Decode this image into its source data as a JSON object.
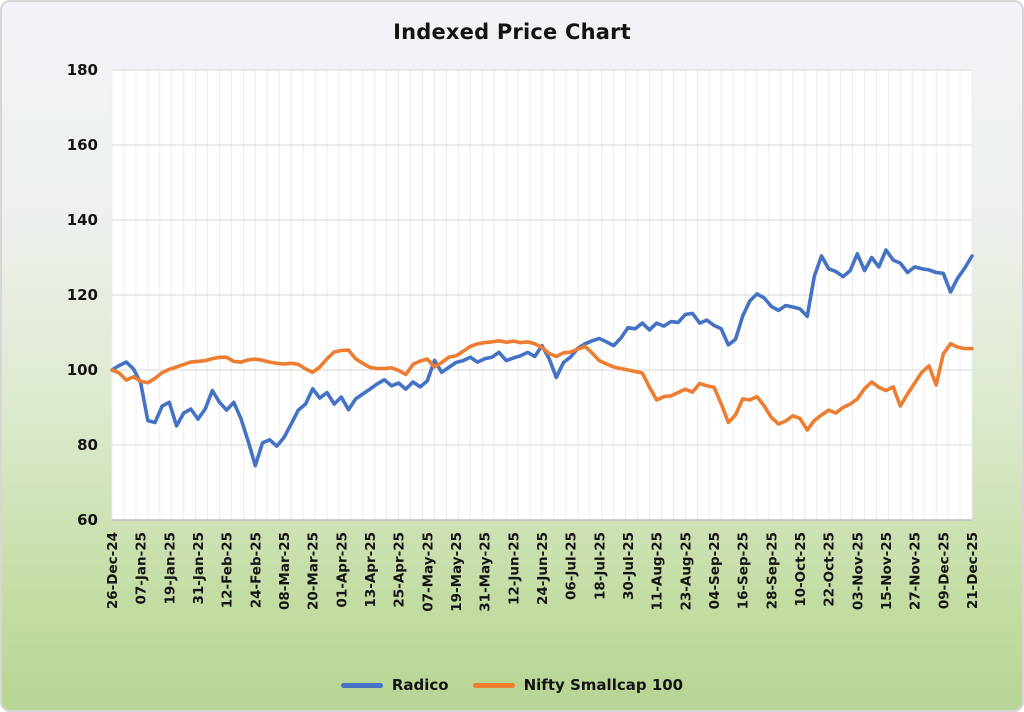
{
  "title": "Indexed Price Chart",
  "legend": [
    {
      "label": "Radico",
      "color": "#4472c4"
    },
    {
      "label": "Nifty Smallcap 100",
      "color": "#ed7d31"
    }
  ],
  "chart_data": {
    "type": "line",
    "title": "Indexed Price Chart",
    "xlabel": "",
    "ylabel": "",
    "grid": "on",
    "legend_position": "bottom",
    "ylim": [
      60,
      180
    ],
    "y_ticks": [
      60,
      80,
      100,
      120,
      140,
      160,
      180
    ],
    "x_tick_days": [
      0,
      12,
      24,
      36,
      48,
      60,
      72,
      84,
      96,
      108,
      120,
      132,
      144,
      156,
      168,
      180,
      192,
      204,
      216,
      228,
      240,
      252,
      264,
      276,
      288,
      300,
      312,
      324,
      336,
      348,
      360
    ],
    "x_tick_labels": [
      "26-Dec-24",
      "07-Jan-25",
      "19-Jan-25",
      "31-Jan-25",
      "12-Feb-25",
      "24-Feb-25",
      "08-Mar-25",
      "20-Mar-25",
      "01-Apr-25",
      "13-Apr-25",
      "25-Apr-25",
      "07-May-25",
      "19-May-25",
      "31-May-25",
      "12-Jun-25",
      "24-Jun-25",
      "06-Jul-25",
      "18-Jul-25",
      "30-Jul-25",
      "11-Aug-25",
      "23-Aug-25",
      "04-Sep-25",
      "16-Sep-25",
      "28-Sep-25",
      "10-Oct-25",
      "22-Oct-25",
      "03-Nov-25",
      "15-Nov-25",
      "27-Nov-25",
      "09-Dec-25",
      "21-Dec-25"
    ],
    "x_days": [
      0,
      3,
      6,
      9,
      12,
      15,
      18,
      21,
      24,
      27,
      30,
      33,
      36,
      39,
      42,
      45,
      48,
      51,
      54,
      57,
      60,
      63,
      66,
      69,
      72,
      75,
      78,
      81,
      84,
      87,
      90,
      93,
      96,
      99,
      102,
      105,
      108,
      111,
      114,
      117,
      120,
      123,
      126,
      129,
      132,
      135,
      138,
      141,
      144,
      147,
      150,
      153,
      156,
      159,
      162,
      165,
      168,
      171,
      174,
      177,
      180,
      183,
      186,
      189,
      192,
      195,
      198,
      201,
      204,
      207,
      210,
      213,
      216,
      219,
      222,
      225,
      228,
      231,
      234,
      237,
      240,
      243,
      246,
      249,
      252,
      255,
      258,
      261,
      264,
      267,
      270,
      273,
      276,
      279,
      282,
      285,
      288,
      291,
      294,
      297,
      300,
      303,
      306,
      309,
      312,
      315,
      318,
      321,
      324,
      327,
      330,
      333,
      336,
      339,
      342,
      345,
      348,
      351,
      354,
      357,
      360
    ],
    "series": [
      {
        "name": "Radico",
        "color": "#4472c4",
        "values": [
          100.0,
          101.2,
          102.1,
          100.3,
          96.5,
          86.5,
          86.0,
          90.4,
          91.4,
          85.1,
          88.5,
          89.6,
          86.9,
          89.6,
          94.5,
          91.4,
          89.3,
          91.4,
          87.0,
          81.0,
          74.5,
          80.6,
          81.4,
          79.7,
          82.0,
          85.6,
          89.3,
          90.9,
          95.0,
          92.5,
          94.0,
          90.9,
          92.8,
          89.4,
          92.3,
          93.6,
          94.9,
          96.3,
          97.4,
          95.8,
          96.5,
          94.9,
          96.8,
          95.5,
          97.1,
          102.6,
          99.4,
          100.7,
          102.0,
          102.5,
          103.4,
          102.1,
          103.0,
          103.4,
          104.7,
          102.5,
          103.2,
          103.8,
          104.7,
          103.6,
          106.5,
          103.0,
          98.0,
          102.0,
          103.5,
          105.8,
          107.0,
          107.8,
          108.4,
          107.5,
          106.5,
          108.5,
          111.3,
          111.0,
          112.5,
          110.7,
          112.5,
          111.7,
          112.9,
          112.7,
          114.8,
          115.1,
          112.5,
          113.3,
          111.9,
          111.0,
          106.7,
          108.2,
          114.4,
          118.4,
          120.3,
          119.2,
          117.0,
          115.9,
          117.2,
          116.8,
          116.3,
          114.3,
          125.0,
          130.4,
          127.0,
          126.3,
          124.9,
          126.5,
          131.0,
          126.5,
          130.0,
          127.5,
          132.0,
          129.3,
          128.5,
          126.0,
          127.5,
          127.0,
          126.7,
          126.0,
          125.8,
          120.8,
          124.5,
          127.2,
          130.4
        ]
      },
      {
        "name": "Nifty Smallcap 100",
        "color": "#ed7d31",
        "values": [
          100.0,
          99.2,
          97.3,
          98.2,
          97.0,
          96.6,
          97.8,
          99.3,
          100.2,
          100.8,
          101.5,
          102.1,
          102.3,
          102.5,
          103.0,
          103.4,
          103.4,
          102.3,
          102.1,
          102.7,
          102.9,
          102.6,
          102.1,
          101.8,
          101.6,
          101.8,
          101.5,
          100.3,
          99.4,
          100.8,
          103.0,
          104.8,
          105.2,
          105.3,
          103.0,
          101.8,
          100.7,
          100.4,
          100.4,
          100.6,
          99.9,
          98.8,
          101.5,
          102.4,
          102.9,
          100.8,
          102.0,
          103.4,
          103.8,
          105.0,
          106.3,
          107.0,
          107.3,
          107.5,
          107.8,
          107.4,
          107.7,
          107.3,
          107.5,
          107.0,
          106.0,
          104.4,
          103.6,
          104.6,
          104.8,
          105.6,
          106.3,
          104.5,
          102.5,
          101.6,
          100.8,
          100.4,
          100.0,
          99.6,
          99.2,
          95.4,
          92.0,
          92.9,
          93.1,
          94.0,
          94.9,
          94.1,
          96.4,
          95.8,
          95.4,
          91.0,
          86.0,
          88.0,
          92.3,
          92.0,
          92.9,
          90.4,
          87.4,
          85.6,
          86.4,
          87.8,
          87.1,
          84.0,
          86.5,
          88.0,
          89.3,
          88.5,
          90.0,
          90.9,
          92.3,
          95.0,
          96.8,
          95.4,
          94.5,
          95.5,
          90.4,
          93.6,
          96.5,
          99.4,
          101.1,
          96.0,
          104.3,
          107.0,
          106.1,
          105.7,
          105.7
        ]
      }
    ],
    "colors": {
      "plot_background": "#ffffff",
      "h_gridline": "#d8d8d8",
      "v_gridline": "#ededed",
      "axis_line": "#bfbfbf"
    }
  }
}
